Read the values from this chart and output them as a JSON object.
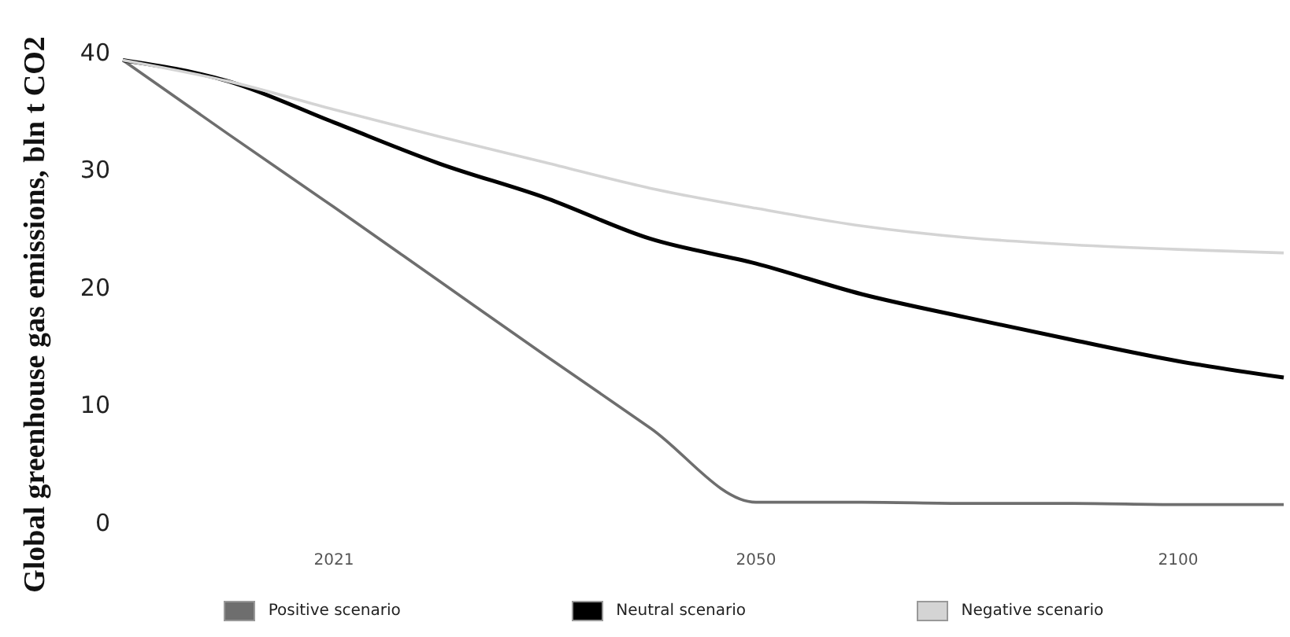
{
  "chart_data": {
    "type": "line",
    "ylabel": "Global greenhouse gas emissions, bln t CO2",
    "categories": [
      null,
      null,
      "2021",
      null,
      null,
      null,
      "2050",
      null,
      null,
      null,
      "2100",
      null
    ],
    "ylim": [
      0,
      40
    ],
    "yticks": [
      0,
      10,
      20,
      30,
      40
    ],
    "grid": false,
    "legend": "bottom",
    "marker": "none",
    "line_style": "solid",
    "series": [
      {
        "name": "Positive scenario",
        "color": "#6e6e6e",
        "values": [
          39.3,
          33.0,
          26.8,
          20.5,
          14.2,
          8.0,
          1.7,
          1.7,
          1.6,
          1.6,
          1.5,
          1.5
        ]
      },
      {
        "name": "Neutral scenario",
        "color": "#000000",
        "values": [
          39.3,
          37.5,
          34,
          30.5,
          27.6,
          24.1,
          22,
          19.4,
          17.4,
          15.5,
          13.7,
          12.3
        ]
      },
      {
        "name": "Negative scenario",
        "color": "#d4d4d4",
        "values": [
          39.3,
          37.5,
          35.1,
          32.8,
          30.6,
          28.4,
          26.7,
          25.2,
          24.2,
          23.6,
          23.2,
          22.9
        ]
      }
    ]
  }
}
